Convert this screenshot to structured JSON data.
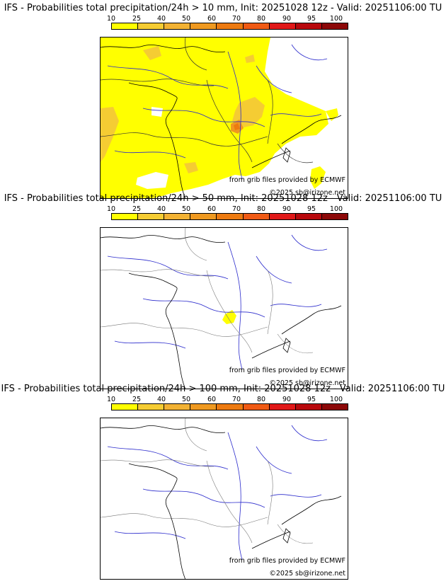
{
  "colorbar": {
    "ticks": [
      "10",
      "25",
      "40",
      "50",
      "60",
      "70",
      "80",
      "90",
      "95",
      "100"
    ],
    "colors": [
      "#ffff00",
      "#f5cc33",
      "#f2b233",
      "#ef9920",
      "#ed7a10",
      "#f05a14",
      "#e01818",
      "#b8080c",
      "#8c0808",
      "#5a0000"
    ]
  },
  "panels": [
    {
      "title": "IFS - Probabilities total precipitation/24h > 10 mm, Init: 20251028 12z - Valid: 20251106:00 TU",
      "threshold_mm": 10,
      "credit_data": "from grib files provided by ECMWF",
      "credit_copyright": "©2025 sb@irizone.net"
    },
    {
      "title": "IFS - Probabilities total precipitation/24h > 50 mm, Init: 20251028 12z - Valid: 20251106:00 TU",
      "threshold_mm": 50,
      "credit_data": "from grib files provided by ECMWF",
      "credit_copyright": "©2025 sb@irizone.net"
    },
    {
      "title": "IFS - Probabilities total precipitation/24h > 100 mm, Init: 20251028 12z - Valid: 20251106:00 TU",
      "threshold_mm": 100,
      "credit_data": "from grib files provided by ECMWF",
      "credit_copyright": "©2025 sb@irizone.net"
    }
  ]
}
